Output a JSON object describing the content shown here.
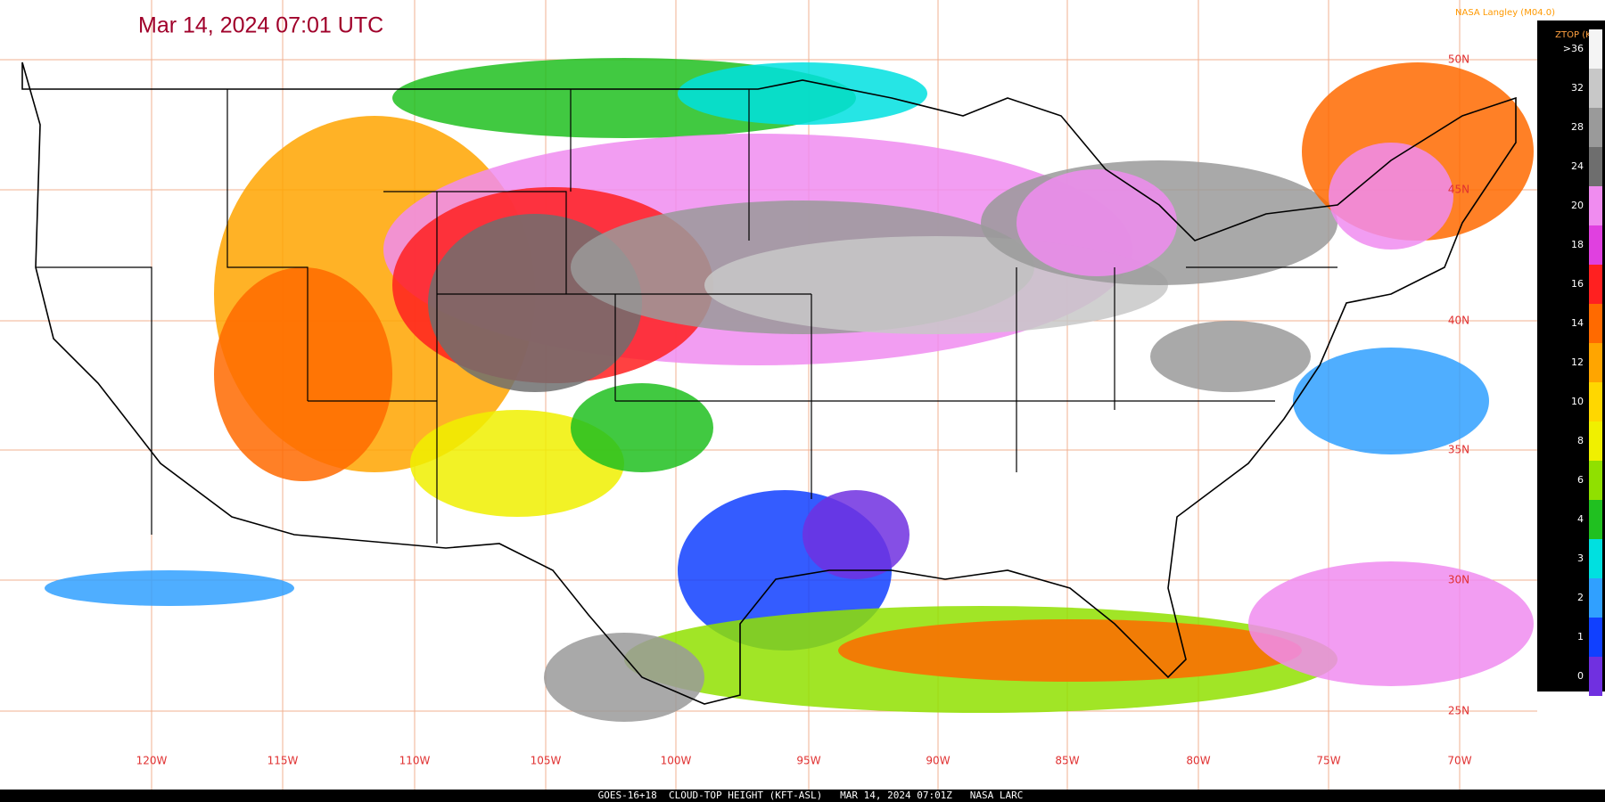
{
  "header": {
    "title": "Mar 14, 2024 07:01 UTC",
    "credit": "NASA Langley (M04.0)"
  },
  "legend": {
    "title": "ZTOP (Kft)",
    "labels": [
      ">36",
      "32",
      "28",
      "24",
      "20",
      "18",
      "16",
      "14",
      "12",
      "10",
      "8",
      "6",
      "4",
      "3",
      "2",
      "1",
      "0"
    ],
    "colors": [
      "#f4f4f4",
      "#c8c8c8",
      "#9a9a9a",
      "#6e6e6e",
      "#f08cf0",
      "#e040e0",
      "#ff2020",
      "#ff6a00",
      "#ffa500",
      "#ffd700",
      "#f0f000",
      "#90e000",
      "#20c020",
      "#00e0e0",
      "#30a0ff",
      "#1040ff",
      "#7030e0"
    ]
  },
  "latitude_labels": [
    "50N",
    "45N",
    "40N",
    "35N",
    "30N",
    "25N"
  ],
  "longitude_labels": [
    "120W",
    "115W",
    "110W",
    "105W",
    "100W",
    "95W",
    "90W",
    "85W",
    "80W",
    "75W",
    "70W"
  ],
  "footer": "GOES-16+18  CLOUD-TOP HEIGHT (KFT-ASL)   MAR 14, 2024 07:01Z   NASA LARC"
}
